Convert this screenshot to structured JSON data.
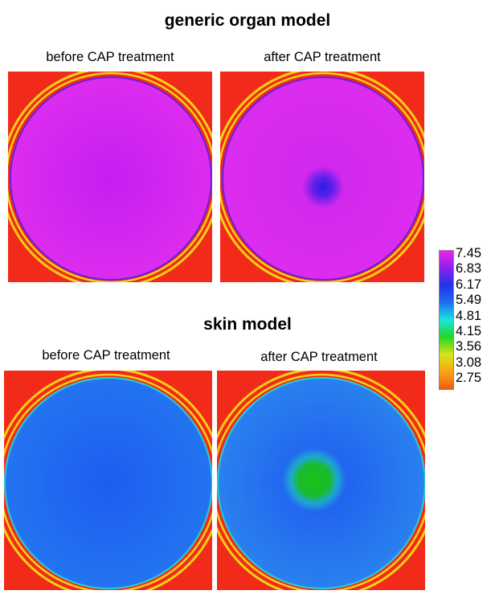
{
  "sections": [
    {
      "title": "generic organ model",
      "panels": [
        {
          "label": "before CAP treatment",
          "center_color": "#c61ef2",
          "field_color": "#dc2cef",
          "spot_color": null
        },
        {
          "label": "after CAP treatment",
          "center_color": "#cf28ee",
          "field_color": "#dc2cef",
          "spot_color": "#2d1be8"
        }
      ]
    },
    {
      "title": "skin model",
      "panels": [
        {
          "label": "before CAP treatment",
          "center_color": "#1e5cf0",
          "field_color": "#2374f0",
          "spot_color": null
        },
        {
          "label": "after CAP treatment",
          "center_color": "#1f5bf0",
          "field_color": "#2a80ee",
          "spot_color": "#18c418"
        }
      ]
    }
  ],
  "colorbar": {
    "ticks": [
      "7.45",
      "6.83",
      "6.17",
      "5.49",
      "4.81",
      "4.15",
      "3.56",
      "3.08",
      "2.75"
    ],
    "colors": [
      "#f520f0",
      "#8a22ea",
      "#2233ea",
      "#1c6ef2",
      "#18e6e0",
      "#22d822",
      "#d8e41a",
      "#f5a612",
      "#f25a14"
    ]
  },
  "background_color": "#f22a1a",
  "ring_color": "#f2d214"
}
